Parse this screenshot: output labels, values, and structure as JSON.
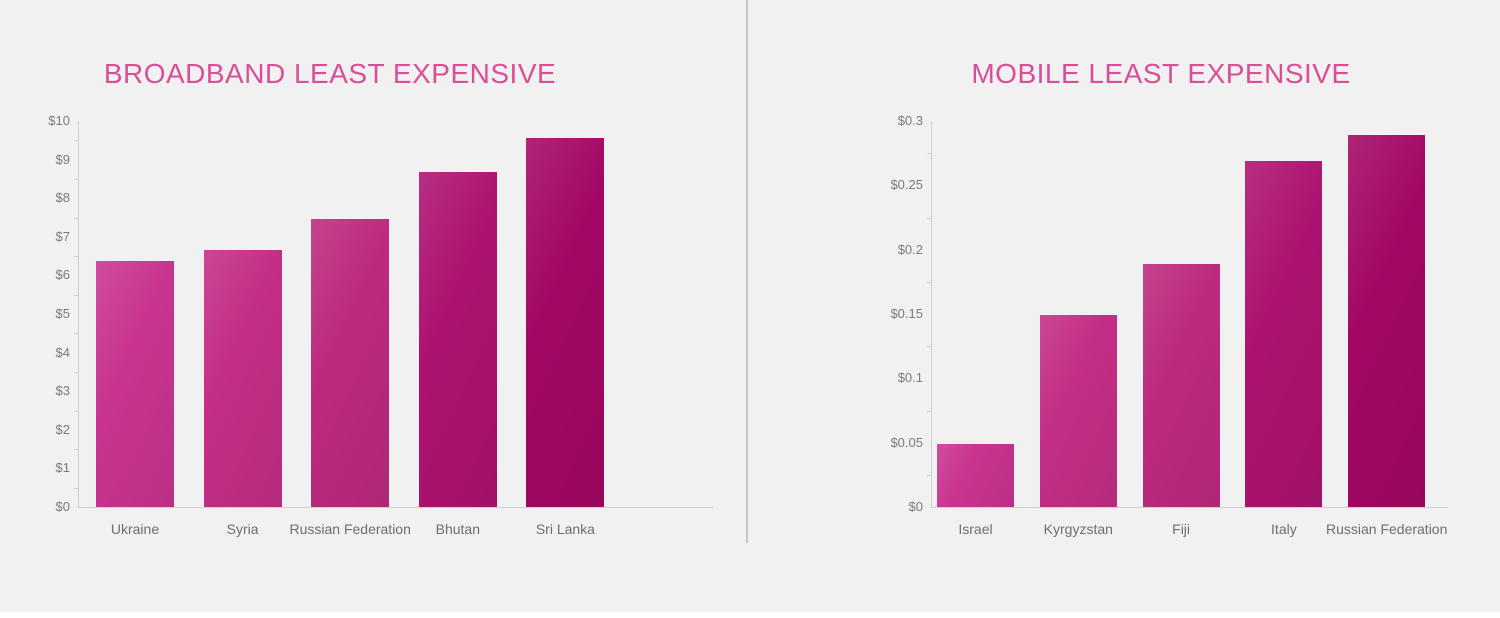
{
  "page": {
    "background_color": "#f1f1f2",
    "divider_color": "#c6c6c6",
    "bottom_strip_color": "#ffffff",
    "title_color": "#d94f97",
    "axis_line_color": "#cfcfcf",
    "ytick_label_color": "#7b7b7b",
    "xtick_label_color": "#6e6e6e"
  },
  "chart_data": [
    {
      "type": "bar",
      "title": "BROADBAND LEAST EXPENSIVE",
      "categories": [
        "Ukraine",
        "Syria",
        "Russian Federation",
        "Bhutan",
        "Sri Lanka"
      ],
      "values": [
        6.37,
        6.65,
        7.46,
        8.68,
        9.56
      ],
      "ylim": [
        0,
        10
      ],
      "ytick_labels": [
        "$10",
        "$9",
        "$8",
        "$7",
        "$6",
        "$5",
        "$4",
        "$3",
        "$2",
        "$1",
        "$0"
      ],
      "xlabel": "",
      "ylabel": "",
      "grid": false,
      "legend": "none",
      "bar_colors": [
        "#c93490",
        "#c32e86",
        "#bc2a7e",
        "#ad1270",
        "#a30765"
      ]
    },
    {
      "type": "bar",
      "title": "MOBILE LEAST EXPENSIVE",
      "categories": [
        "Israel",
        "Kyrgyzstan",
        "Fiji",
        "Italy",
        "Russian Federation"
      ],
      "values": [
        0.049,
        0.149,
        0.189,
        0.269,
        0.289
      ],
      "ylim": [
        0,
        0.3
      ],
      "ytick_labels": [
        "$0.3",
        "$0.25",
        "$0.2",
        "$0.15",
        "$0.1",
        "$0.05",
        "$0"
      ],
      "xlabel": "",
      "ylabel": "",
      "grid": false,
      "legend": "none",
      "bar_colors": [
        "#c93490",
        "#c32e86",
        "#bc2a7e",
        "#ad1270",
        "#a30765"
      ]
    }
  ]
}
